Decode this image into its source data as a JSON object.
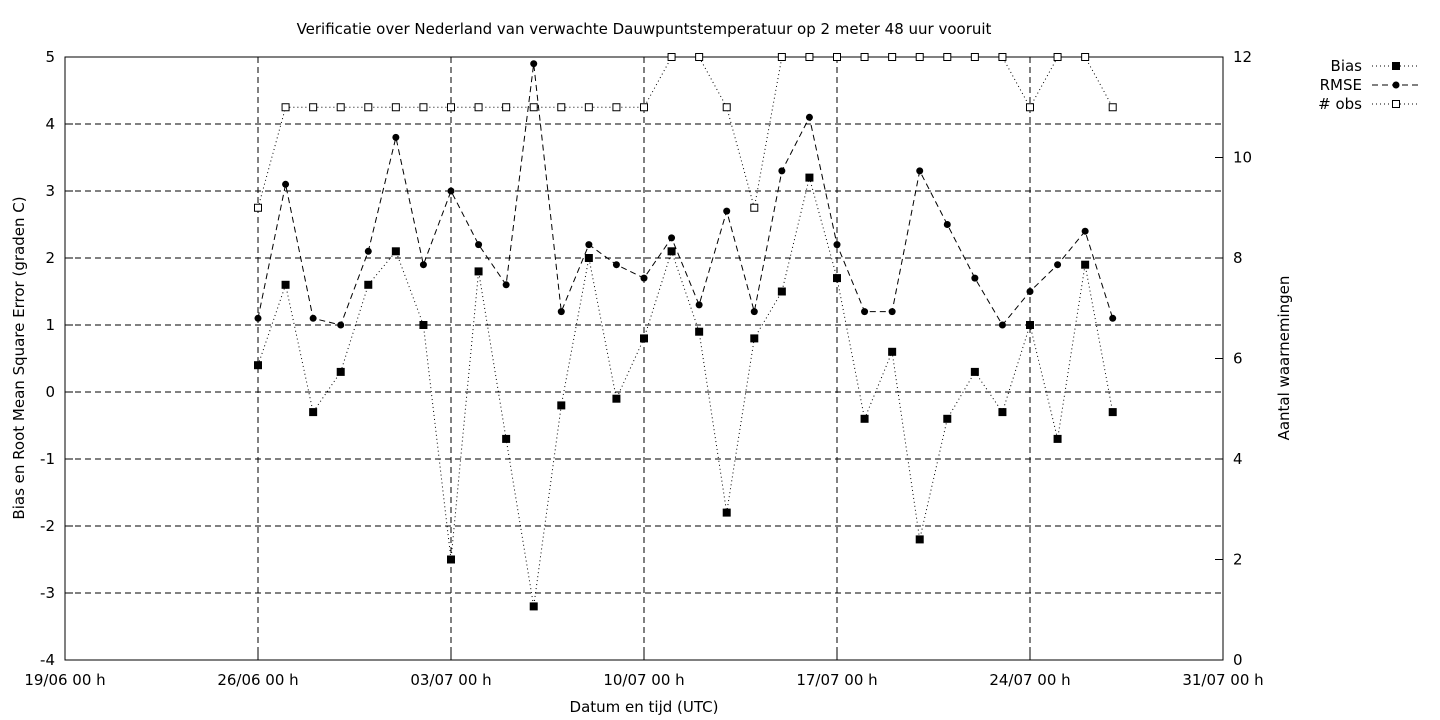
{
  "chart_data": {
    "type": "line",
    "title": "Verificatie over Nederland van verwachte Dauwpuntstemperatuur op 2 meter 48 uur vooruit",
    "xlabel": "Datum en tijd (UTC)",
    "ylabel": "Bias en Root Mean Square Error (graden C)",
    "y2label": "Aantal waarnemingen",
    "x_ticks": [
      "19/06 00 h",
      "26/06 00 h",
      "03/07 00 h",
      "10/07 00 h",
      "17/07 00 h",
      "24/07 00 h",
      "31/07 00 h"
    ],
    "x_range_days": [
      0,
      42
    ],
    "y_ticks": [
      "-4",
      "-3",
      "-2",
      "-1",
      "0",
      "1",
      "2",
      "3",
      "4",
      "5"
    ],
    "ylim": [
      -4,
      5
    ],
    "y2_ticks": [
      "0",
      "2",
      "4",
      "6",
      "8",
      "10",
      "12"
    ],
    "y2lim": [
      0,
      12
    ],
    "grid": true,
    "legend_position": "top-right outside",
    "series": [
      {
        "name": "Bias",
        "axis": "left",
        "style": "dotted-filled-square",
        "x": [
          7,
          8,
          9,
          10,
          11,
          12,
          13,
          14,
          15,
          16,
          17,
          18,
          19,
          20,
          21,
          22,
          23,
          24,
          25,
          26,
          27,
          28,
          29,
          30,
          31,
          32,
          33,
          34,
          35,
          36,
          37,
          38
        ],
        "values": [
          0.4,
          1.6,
          -0.3,
          0.3,
          1.6,
          2.1,
          1.0,
          -2.5,
          1.8,
          -0.7,
          -3.2,
          -0.2,
          2.0,
          -0.1,
          0.8,
          2.1,
          0.9,
          -1.8,
          0.8,
          1.5,
          3.2,
          1.7,
          -0.4,
          0.6,
          -2.2,
          -0.4,
          0.3,
          -0.3,
          1.0,
          -0.7,
          1.9,
          -0.3
        ]
      },
      {
        "name": "RMSE",
        "axis": "left",
        "style": "dashed-filled-circle",
        "x": [
          7,
          8,
          9,
          10,
          11,
          12,
          13,
          14,
          15,
          16,
          17,
          18,
          19,
          20,
          21,
          22,
          23,
          24,
          25,
          26,
          27,
          28,
          29,
          30,
          31,
          32,
          33,
          34,
          35,
          36,
          37,
          38
        ],
        "values": [
          1.1,
          3.1,
          1.1,
          1.0,
          2.1,
          3.8,
          1.9,
          3.0,
          2.2,
          1.6,
          4.9,
          1.2,
          2.2,
          1.9,
          1.7,
          2.3,
          1.3,
          2.7,
          1.2,
          3.3,
          4.1,
          2.2,
          1.2,
          1.2,
          3.3,
          2.5,
          1.7,
          1.0,
          1.5,
          1.9,
          2.4,
          1.1
        ]
      },
      {
        "name": "# obs",
        "axis": "right",
        "style": "dotted-open-square",
        "x": [
          7,
          8,
          9,
          10,
          11,
          12,
          13,
          14,
          15,
          16,
          17,
          18,
          19,
          20,
          21,
          22,
          23,
          24,
          25,
          26,
          27,
          28,
          29,
          30,
          31,
          32,
          33,
          34,
          35,
          36,
          37,
          38
        ],
        "values": [
          9,
          11,
          11,
          11,
          11,
          11,
          11,
          11,
          11,
          11,
          11,
          11,
          11,
          11,
          11,
          12,
          12,
          11,
          9,
          12,
          12,
          12,
          12,
          12,
          12,
          12,
          12,
          12,
          11,
          12,
          12,
          11
        ]
      }
    ]
  }
}
